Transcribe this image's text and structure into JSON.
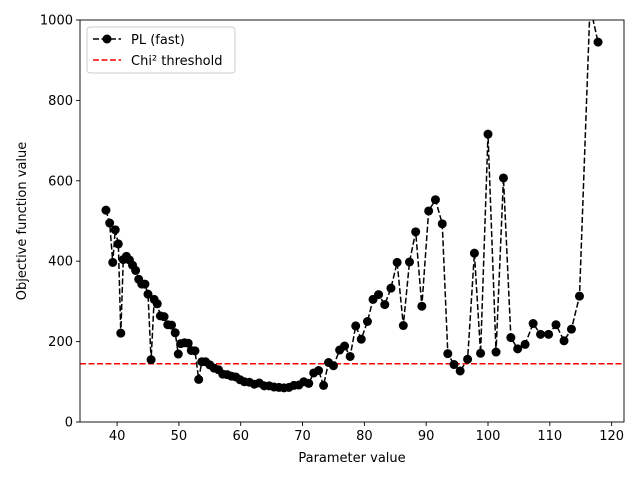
{
  "chart_data": {
    "type": "line",
    "title": "",
    "xlabel": "Parameter value",
    "ylabel": "Objective function value",
    "xlim": [
      34.0,
      122.0
    ],
    "ylim": [
      0,
      1000
    ],
    "xticks": [
      40,
      50,
      60,
      70,
      80,
      90,
      100,
      110,
      120
    ],
    "yticks": [
      0,
      200,
      400,
      600,
      800,
      1000
    ],
    "legend_position": "top-left",
    "series": [
      {
        "name": "PL (fast)",
        "style": "dashed line with circle markers",
        "color": "#000000",
        "x": [
          38.2,
          38.8,
          39.3,
          39.7,
          40.2,
          40.6,
          41.0,
          41.5,
          42.0,
          42.5,
          43.0,
          43.5,
          44.0,
          44.5,
          45.0,
          45.5,
          46.0,
          46.5,
          47.0,
          47.6,
          48.2,
          48.8,
          49.4,
          49.9,
          50.3,
          50.9,
          51.5,
          52.0,
          52.6,
          53.2,
          53.7,
          54.3,
          55.0,
          55.7,
          56.4,
          57.1,
          57.8,
          58.5,
          59.2,
          59.9,
          60.6,
          61.4,
          62.2,
          63.0,
          63.8,
          64.6,
          65.4,
          66.2,
          67.0,
          67.8,
          68.6,
          69.4,
          70.2,
          71.0,
          71.8,
          72.6,
          73.4,
          74.2,
          75.0,
          76.0,
          76.8,
          77.7,
          78.6,
          79.5,
          80.5,
          81.4,
          82.3,
          83.3,
          84.3,
          85.3,
          86.3,
          87.3,
          88.3,
          89.3,
          90.4,
          91.5,
          92.6,
          93.5,
          94.5,
          95.5,
          96.7,
          97.8,
          98.8,
          100.0,
          101.3,
          102.5,
          103.7,
          104.8,
          106.0,
          107.3,
          108.5,
          109.8,
          111.0,
          112.3,
          113.5,
          114.8,
          116.5,
          117.8
        ],
        "y": [
          527,
          495,
          397,
          478,
          443,
          221,
          404,
          412,
          403,
          390,
          377,
          355,
          343,
          343,
          318,
          155,
          305,
          294,
          264,
          262,
          242,
          241,
          222,
          169,
          195,
          197,
          196,
          178,
          177,
          106,
          150,
          150,
          142,
          134,
          130,
          119,
          118,
          114,
          112,
          105,
          100,
          99,
          94,
          97,
          90,
          90,
          87,
          86,
          85,
          86,
          91,
          92,
          100,
          96,
          122,
          128,
          91,
          148,
          140,
          179,
          189,
          163,
          239,
          206,
          250,
          305,
          317,
          292,
          333,
          397,
          240,
          398,
          473,
          288,
          525,
          553,
          493,
          170,
          143,
          127,
          156,
          420,
          171,
          716,
          174,
          607,
          210,
          182,
          193,
          245,
          218,
          218,
          242,
          202,
          231,
          313,
          1035,
          945
        ]
      },
      {
        "name": "Chi² threshold",
        "style": "dashed line",
        "color": "#ff0000",
        "y_constant": 145
      }
    ]
  }
}
